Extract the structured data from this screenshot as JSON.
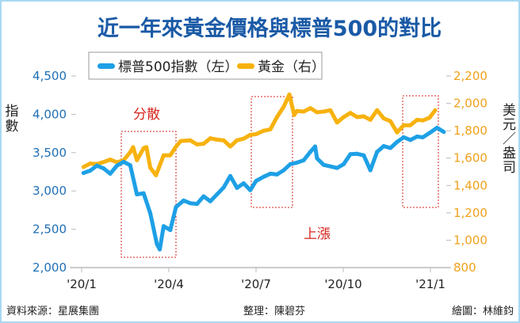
{
  "chart_data": {
    "type": "line",
    "title": "近一年來黃金價格與標普500的對比",
    "ylabel_left": "指數",
    "ylabel_right": "美元／盎司",
    "ylim_left": [
      2000,
      4500
    ],
    "ylim_right": [
      800,
      2200
    ],
    "yticks_left": [
      "4,500",
      "4,000",
      "3,500",
      "3,000",
      "2,500",
      "2,000"
    ],
    "yticks_right": [
      "2,200",
      "2,000",
      "1,800",
      "1,600",
      "1,400",
      "1,200",
      "1,000",
      "800"
    ],
    "xticks": [
      "'20/1",
      "'20/4",
      "'20/7",
      "'20/10",
      "'21/1"
    ],
    "grid": false,
    "legend_position": "top",
    "colors": {
      "sp500": "#1ea0e6",
      "gold": "#f7b20f",
      "annotation": "#d7261e"
    },
    "annotations": {
      "divergence": "分散",
      "rise": "上漲"
    },
    "series": [
      {
        "name": "標普500指數（左）",
        "axis": "left",
        "points": [
          [
            "2020-01-03",
            3235
          ],
          [
            "2020-01-10",
            3265
          ],
          [
            "2020-01-17",
            3330
          ],
          [
            "2020-01-24",
            3295
          ],
          [
            "2020-01-31",
            3225
          ],
          [
            "2020-02-07",
            3330
          ],
          [
            "2020-02-14",
            3380
          ],
          [
            "2020-02-21",
            3335
          ],
          [
            "2020-02-28",
            2955
          ],
          [
            "2020-03-06",
            2970
          ],
          [
            "2020-03-13",
            2710
          ],
          [
            "2020-03-20",
            2305
          ],
          [
            "2020-03-23",
            2237
          ],
          [
            "2020-03-27",
            2540
          ],
          [
            "2020-04-03",
            2490
          ],
          [
            "2020-04-09",
            2790
          ],
          [
            "2020-04-17",
            2875
          ],
          [
            "2020-04-24",
            2840
          ],
          [
            "2020-05-01",
            2830
          ],
          [
            "2020-05-08",
            2930
          ],
          [
            "2020-05-15",
            2865
          ],
          [
            "2020-05-22",
            2955
          ],
          [
            "2020-05-29",
            3045
          ],
          [
            "2020-06-05",
            3195
          ],
          [
            "2020-06-12",
            3040
          ],
          [
            "2020-06-19",
            3100
          ],
          [
            "2020-06-26",
            3010
          ],
          [
            "2020-07-02",
            3130
          ],
          [
            "2020-07-10",
            3185
          ],
          [
            "2020-07-17",
            3225
          ],
          [
            "2020-07-24",
            3215
          ],
          [
            "2020-07-31",
            3270
          ],
          [
            "2020-08-07",
            3350
          ],
          [
            "2020-08-14",
            3370
          ],
          [
            "2020-08-21",
            3400
          ],
          [
            "2020-08-28",
            3510
          ],
          [
            "2020-09-02",
            3580
          ],
          [
            "2020-09-04",
            3425
          ],
          [
            "2020-09-11",
            3340
          ],
          [
            "2020-09-18",
            3320
          ],
          [
            "2020-09-25",
            3300
          ],
          [
            "2020-10-02",
            3350
          ],
          [
            "2020-10-09",
            3480
          ],
          [
            "2020-10-16",
            3485
          ],
          [
            "2020-10-23",
            3465
          ],
          [
            "2020-10-30",
            3270
          ],
          [
            "2020-11-06",
            3510
          ],
          [
            "2020-11-13",
            3585
          ],
          [
            "2020-11-20",
            3560
          ],
          [
            "2020-11-27",
            3640
          ],
          [
            "2020-12-04",
            3700
          ],
          [
            "2020-12-11",
            3665
          ],
          [
            "2020-12-18",
            3710
          ],
          [
            "2020-12-24",
            3700
          ],
          [
            "2020-12-31",
            3756
          ],
          [
            "2021-01-08",
            3825
          ],
          [
            "2021-01-15",
            3770
          ]
        ]
      },
      {
        "name": "黃金（右）",
        "axis": "right",
        "points": [
          [
            "2020-01-03",
            1535
          ],
          [
            "2020-01-10",
            1560
          ],
          [
            "2020-01-17",
            1557
          ],
          [
            "2020-01-24",
            1571
          ],
          [
            "2020-01-31",
            1589
          ],
          [
            "2020-02-07",
            1570
          ],
          [
            "2020-02-14",
            1584
          ],
          [
            "2020-02-21",
            1643
          ],
          [
            "2020-02-24",
            1680
          ],
          [
            "2020-02-28",
            1585
          ],
          [
            "2020-03-06",
            1672
          ],
          [
            "2020-03-09",
            1680
          ],
          [
            "2020-03-13",
            1530
          ],
          [
            "2020-03-19",
            1475
          ],
          [
            "2020-03-27",
            1620
          ],
          [
            "2020-04-03",
            1620
          ],
          [
            "2020-04-09",
            1684
          ],
          [
            "2020-04-14",
            1725
          ],
          [
            "2020-04-24",
            1730
          ],
          [
            "2020-05-01",
            1700
          ],
          [
            "2020-05-08",
            1705
          ],
          [
            "2020-05-15",
            1745
          ],
          [
            "2020-05-22",
            1735
          ],
          [
            "2020-05-29",
            1730
          ],
          [
            "2020-06-05",
            1685
          ],
          [
            "2020-06-12",
            1730
          ],
          [
            "2020-06-19",
            1742
          ],
          [
            "2020-06-26",
            1770
          ],
          [
            "2020-07-02",
            1775
          ],
          [
            "2020-07-10",
            1800
          ],
          [
            "2020-07-17",
            1810
          ],
          [
            "2020-07-24",
            1900
          ],
          [
            "2020-07-31",
            1975
          ],
          [
            "2020-08-06",
            2065
          ],
          [
            "2020-08-11",
            1915
          ],
          [
            "2020-08-14",
            1945
          ],
          [
            "2020-08-21",
            1940
          ],
          [
            "2020-08-28",
            1965
          ],
          [
            "2020-09-04",
            1935
          ],
          [
            "2020-09-11",
            1940
          ],
          [
            "2020-09-18",
            1950
          ],
          [
            "2020-09-25",
            1860
          ],
          [
            "2020-10-02",
            1900
          ],
          [
            "2020-10-09",
            1930
          ],
          [
            "2020-10-16",
            1900
          ],
          [
            "2020-10-23",
            1905
          ],
          [
            "2020-10-30",
            1880
          ],
          [
            "2020-11-06",
            1950
          ],
          [
            "2020-11-13",
            1890
          ],
          [
            "2020-11-20",
            1870
          ],
          [
            "2020-11-27",
            1788
          ],
          [
            "2020-12-04",
            1840
          ],
          [
            "2020-12-11",
            1840
          ],
          [
            "2020-12-18",
            1880
          ],
          [
            "2020-12-24",
            1875
          ],
          [
            "2020-12-31",
            1895
          ],
          [
            "2021-01-06",
            1950
          ]
        ]
      }
    ]
  },
  "footer": {
    "source": "資料來源：星展集團",
    "editor": "整理：陳碧芬",
    "graphic": "繪圖：林維鈞"
  }
}
